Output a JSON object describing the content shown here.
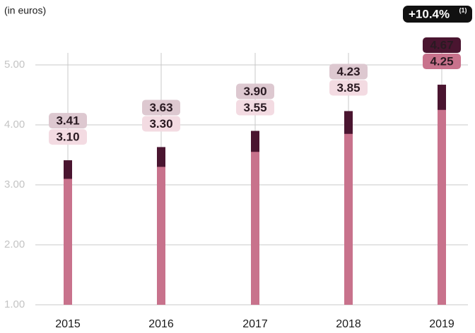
{
  "chart_data": {
    "type": "bar",
    "subtitle": "(in euros)",
    "annotation": {
      "text": "+10.4%",
      "note": "(1)"
    },
    "categories": [
      "2015",
      "2016",
      "2017",
      "2018",
      "2019"
    ],
    "series": [
      {
        "color": "#4a1530",
        "values": [
          3.41,
          3.63,
          3.9,
          4.23,
          4.67
        ],
        "value_labels": [
          "3.41",
          "3.63",
          "3.90",
          "4.23",
          "4.67"
        ]
      },
      {
        "color": "#c8728c",
        "values": [
          3.1,
          3.3,
          3.55,
          3.85,
          4.25
        ],
        "value_labels": [
          "3.10",
          "3.30",
          "3.55",
          "3.85",
          "4.25"
        ]
      }
    ],
    "ylim": [
      1,
      5.2
    ],
    "yticks": [
      {
        "value": 1,
        "label": "1.00"
      },
      {
        "value": 2,
        "label": "2.00"
      },
      {
        "value": 3,
        "label": "3.00"
      },
      {
        "value": 4,
        "label": "4.00"
      },
      {
        "value": 5,
        "label": "5.00"
      }
    ],
    "grid": true
  }
}
